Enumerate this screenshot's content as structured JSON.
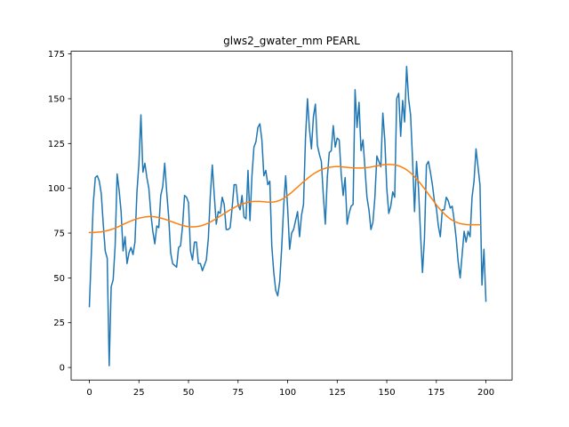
{
  "chart_data": {
    "type": "line",
    "title": "glws2_gwater_mm PEARL",
    "xlabel": "",
    "ylabel": "",
    "xlim": [
      -9.2,
      213.2
    ],
    "ylim": [
      -7.0,
      176.5
    ],
    "x_ticks": [
      0,
      25,
      50,
      75,
      100,
      125,
      150,
      175,
      200
    ],
    "y_ticks": [
      0,
      25,
      50,
      75,
      100,
      125,
      150,
      175
    ],
    "grid": false,
    "legend": "none",
    "series": [
      {
        "color": "#1f77b4",
        "values": [
          34,
          64,
          92,
          106,
          107,
          104,
          97,
          80,
          65,
          61,
          1,
          45,
          49,
          68,
          108,
          99,
          87,
          65,
          73,
          58,
          64,
          67,
          63,
          70,
          98,
          114,
          141,
          109,
          114,
          106,
          100,
          86,
          76,
          69,
          79,
          78,
          96,
          101,
          114,
          98,
          84,
          64,
          58,
          57,
          56,
          67,
          68,
          79,
          96,
          95,
          92,
          65,
          60,
          70,
          70,
          58,
          58,
          54,
          57,
          60,
          72,
          96,
          113,
          96,
          80,
          87,
          86,
          95,
          91,
          77,
          77,
          78,
          89,
          102,
          102,
          91,
          88,
          96,
          84,
          83,
          110,
          82,
          107,
          123,
          126,
          134,
          136,
          127,
          107,
          110,
          102,
          104,
          68,
          53,
          43,
          40,
          48,
          67,
          90,
          107,
          89,
          66,
          75,
          77,
          82,
          87,
          73,
          85,
          91,
          128,
          150,
          133,
          122,
          140,
          147,
          124,
          119,
          115,
          96,
          80,
          106,
          120,
          121,
          135,
          123,
          128,
          127,
          108,
          96,
          106,
          80,
          86,
          90,
          91,
          155,
          134,
          148,
          121,
          127,
          111,
          95,
          88,
          77,
          81,
          95,
          118,
          115,
          112,
          142,
          127,
          100,
          86,
          90,
          98,
          95,
          150,
          153,
          129,
          149,
          137,
          168,
          150,
          141,
          116,
          87,
          115,
          100,
          75,
          53,
          72,
          113,
          115,
          109,
          102,
          93,
          89,
          79,
          73,
          88,
          88,
          95,
          93,
          89,
          90,
          82,
          72,
          59,
          50,
          63,
          76,
          70,
          76,
          73,
          95,
          104,
          122,
          112,
          102,
          46,
          66,
          37
        ]
      },
      {
        "color": "#ff7f0e",
        "values": [
          75.3,
          75.3,
          75.3,
          75.4,
          75.5,
          75.6,
          75.7,
          75.9,
          76.1,
          76.4,
          76.7,
          77.0,
          77.4,
          77.8,
          78.3,
          78.8,
          79.3,
          79.8,
          80.3,
          80.8,
          81.3,
          81.8,
          82.2,
          82.6,
          83.0,
          83.3,
          83.6,
          83.8,
          84.0,
          84.1,
          84.2,
          84.2,
          84.2,
          84.1,
          83.9,
          83.7,
          83.4,
          83.1,
          82.8,
          82.4,
          82.0,
          81.6,
          81.2,
          80.8,
          80.4,
          80.0,
          79.6,
          79.3,
          79.0,
          78.8,
          78.6,
          78.5,
          78.5,
          78.5,
          78.6,
          78.8,
          79.0,
          79.3,
          79.7,
          80.1,
          80.6,
          81.2,
          81.8,
          82.4,
          83.1,
          83.8,
          84.5,
          85.2,
          85.9,
          86.6,
          87.3,
          88.0,
          88.6,
          89.2,
          89.8,
          90.3,
          90.8,
          91.2,
          91.6,
          91.9,
          92.2,
          92.4,
          92.6,
          92.7,
          92.7,
          92.7,
          92.7,
          92.6,
          92.5,
          92.4,
          92.3,
          92.3,
          92.3,
          92.4,
          92.6,
          92.9,
          93.3,
          93.8,
          94.4,
          95.1,
          95.9,
          96.8,
          97.7,
          98.7,
          99.7,
          100.7,
          101.7,
          102.7,
          103.7,
          104.6,
          105.5,
          106.4,
          107.2,
          108.0,
          108.7,
          109.3,
          109.9,
          110.4,
          110.8,
          111.2,
          111.5,
          111.7,
          111.9,
          112.0,
          112.1,
          112.1,
          112.1,
          112.0,
          111.9,
          111.8,
          111.7,
          111.6,
          111.5,
          111.4,
          111.4,
          111.3,
          111.3,
          111.3,
          111.4,
          111.5,
          111.6,
          111.7,
          111.9,
          112.1,
          112.3,
          112.5,
          112.7,
          112.9,
          113.1,
          113.2,
          113.3,
          113.3,
          113.3,
          113.2,
          113.1,
          112.8,
          112.5,
          112.1,
          111.6,
          111.0,
          110.3,
          109.5,
          108.6,
          107.6,
          106.5,
          105.3,
          104.0,
          102.7,
          101.2,
          99.8,
          98.3,
          96.8,
          95.3,
          93.8,
          92.3,
          90.8,
          89.4,
          88.1,
          86.9,
          85.8,
          84.7,
          83.8,
          82.9,
          82.2,
          81.6,
          81.1,
          80.7,
          80.3,
          80.1,
          79.9,
          79.8,
          79.7,
          79.7,
          79.7,
          79.7,
          79.7,
          79.7,
          79.7
        ]
      }
    ]
  }
}
